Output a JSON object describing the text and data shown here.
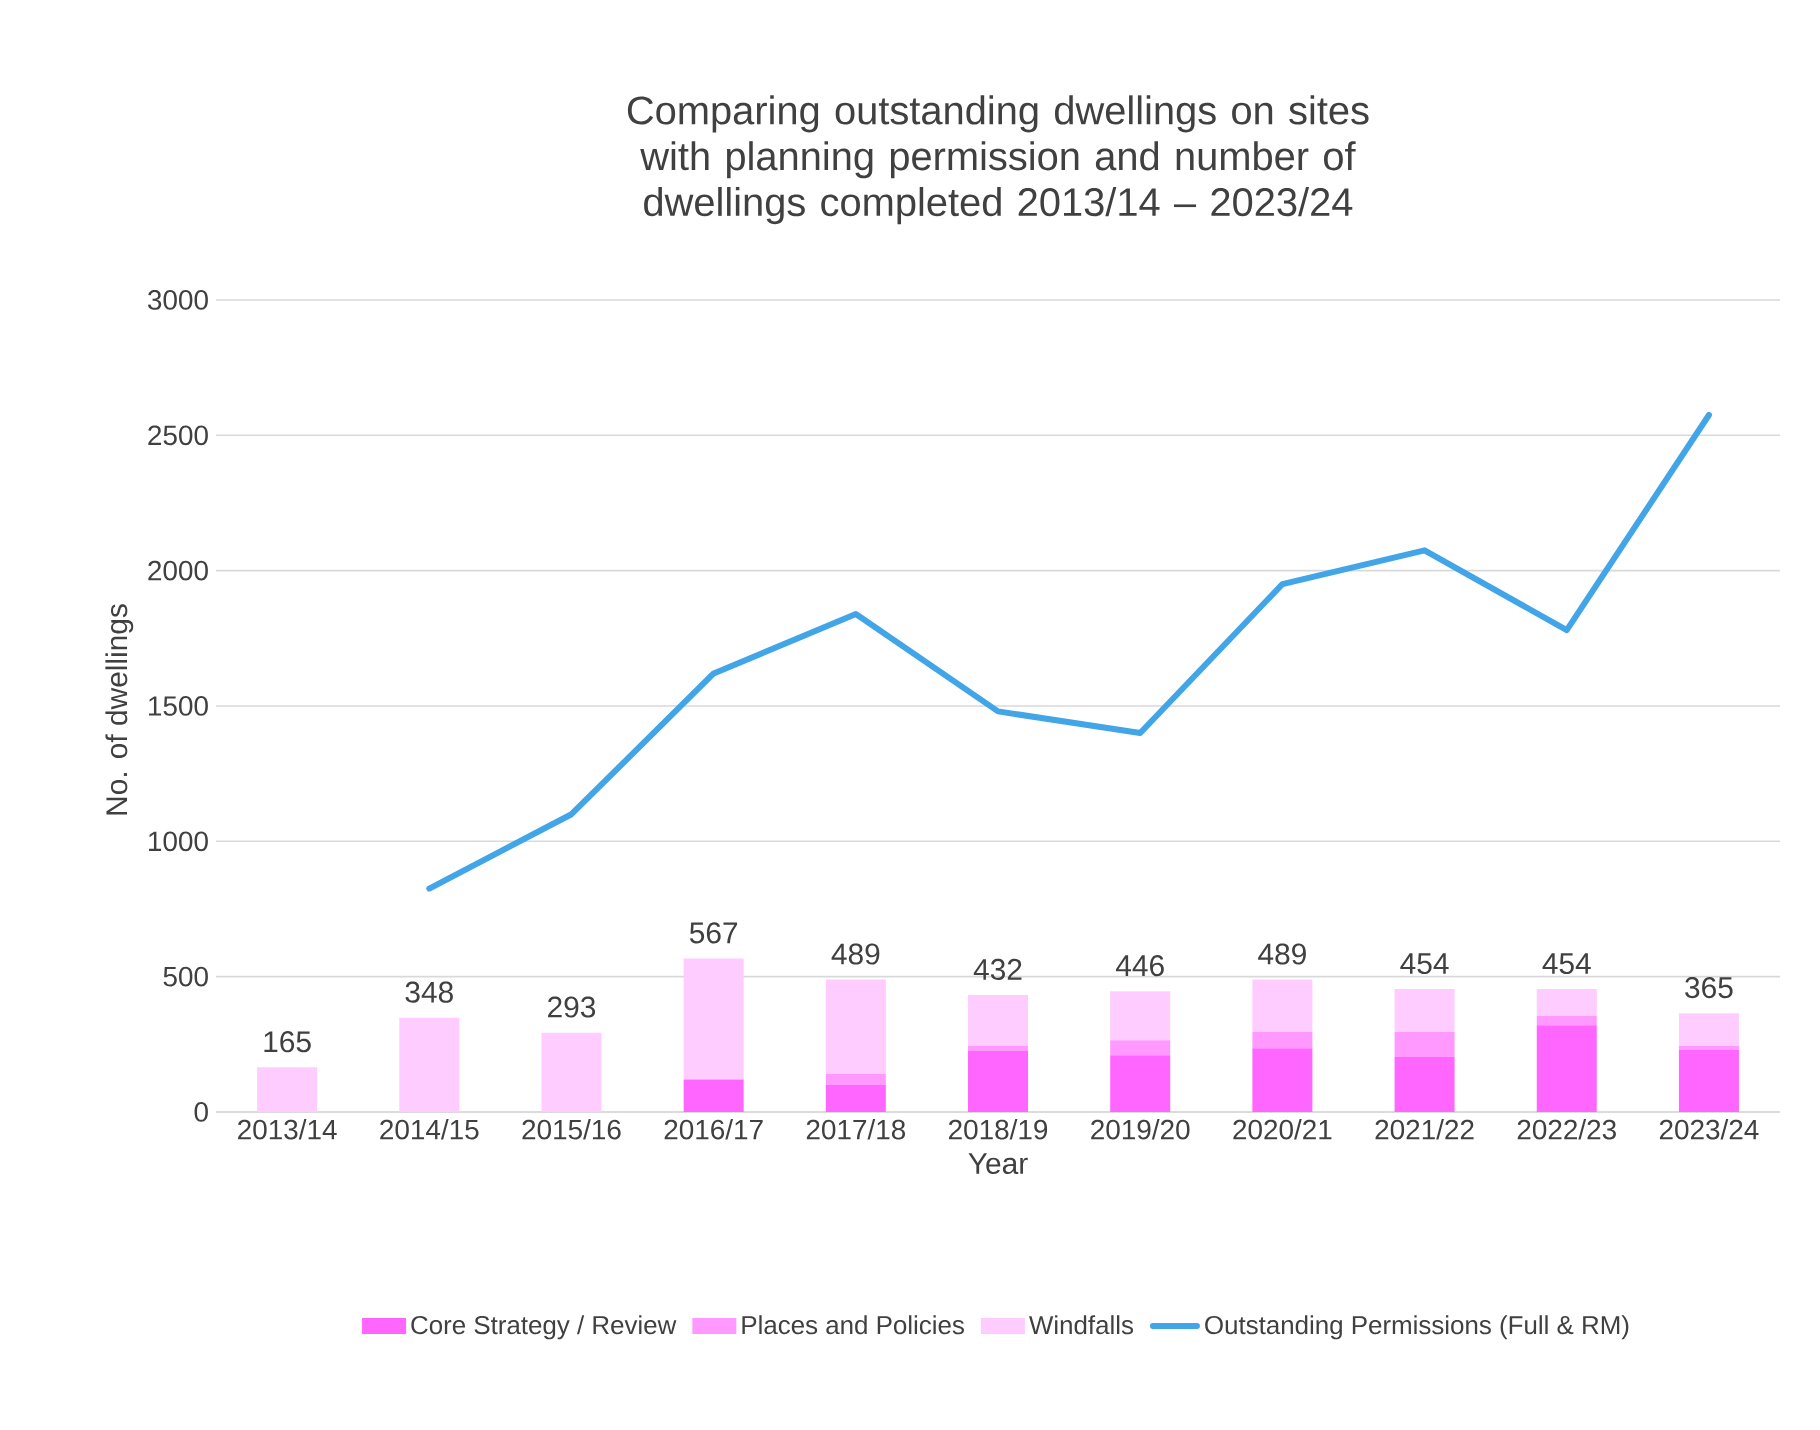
{
  "chart_data": {
    "type": "bar",
    "title": "Comparing outstanding dwellings on sites with planning permission and number of dwellings completed 2013/14 – 2023/24",
    "xlabel": "Year",
    "ylabel": "No. of dwellings",
    "categories": [
      "2013/14",
      "2014/15",
      "2015/16",
      "2016/17",
      "2017/18",
      "2018/19",
      "2019/20",
      "2020/21",
      "2021/22",
      "2022/23",
      "2023/24"
    ],
    "stacked": true,
    "ylim": [
      0,
      3000
    ],
    "yticks": [
      0,
      500,
      1000,
      1500,
      2000,
      2500,
      3000
    ],
    "grid": "y",
    "legend": "bottom",
    "series": [
      {
        "name": "Core Strategy / Review",
        "color": "#ff66ff",
        "values": [
          0,
          0,
          0,
          120,
          100,
          225,
          210,
          235,
          205,
          320,
          230
        ]
      },
      {
        "name": "Places and Policies",
        "color": "#ff99ff",
        "values": [
          0,
          0,
          0,
          0,
          40,
          20,
          55,
          60,
          90,
          35,
          15
        ]
      },
      {
        "name": "Windfalls",
        "color": "#ffccff",
        "values": [
          165,
          348,
          293,
          447,
          349,
          187,
          181,
          194,
          159,
          99,
          120
        ]
      },
      {
        "name": "Outstanding Permissions (Full & RM)",
        "type": "line",
        "color": "#41a5e8",
        "values": [
          null,
          825,
          1100,
          1620,
          1840,
          1480,
          1400,
          1950,
          2075,
          1780,
          2575
        ]
      }
    ],
    "totals": [
      "165",
      "348",
      "293",
      "567",
      "489",
      "432",
      "446",
      "489",
      "454",
      "454",
      "365"
    ]
  }
}
